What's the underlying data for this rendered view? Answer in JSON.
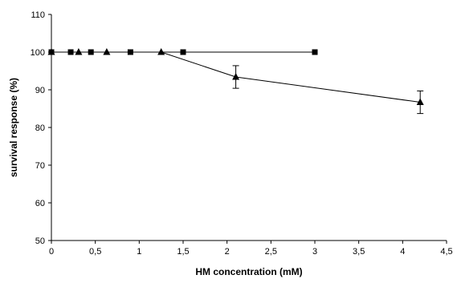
{
  "chart_data": {
    "type": "line",
    "title": "",
    "xlabel": "HM concentration (mM)",
    "ylabel": "survival response (%)",
    "xlim": [
      0,
      4.5
    ],
    "ylim": [
      50,
      110
    ],
    "x_ticks": [
      "0",
      "0,5",
      "1",
      "1,5",
      "2",
      "2,5",
      "3",
      "3,5",
      "4",
      "4,5"
    ],
    "y_ticks": [
      "50",
      "60",
      "70",
      "80",
      "90",
      "100",
      "110"
    ],
    "grid": false,
    "legend": "none",
    "series": [
      {
        "marker": "square",
        "color": "#000000",
        "points": [
          {
            "x": 0,
            "y": 100
          },
          {
            "x": 0.22,
            "y": 100
          },
          {
            "x": 0.45,
            "y": 100
          },
          {
            "x": 0.9,
            "y": 100
          },
          {
            "x": 1.5,
            "y": 100
          },
          {
            "x": 3.0,
            "y": 100
          }
        ]
      },
      {
        "marker": "triangle",
        "color": "#000000",
        "points": [
          {
            "x": 0,
            "y": 100
          },
          {
            "x": 0.31,
            "y": 100
          },
          {
            "x": 0.63,
            "y": 100
          },
          {
            "x": 1.25,
            "y": 100
          },
          {
            "x": 2.1,
            "y": 93.4,
            "err": 3.0
          },
          {
            "x": 4.2,
            "y": 86.7,
            "err": 3.0
          }
        ]
      }
    ]
  }
}
